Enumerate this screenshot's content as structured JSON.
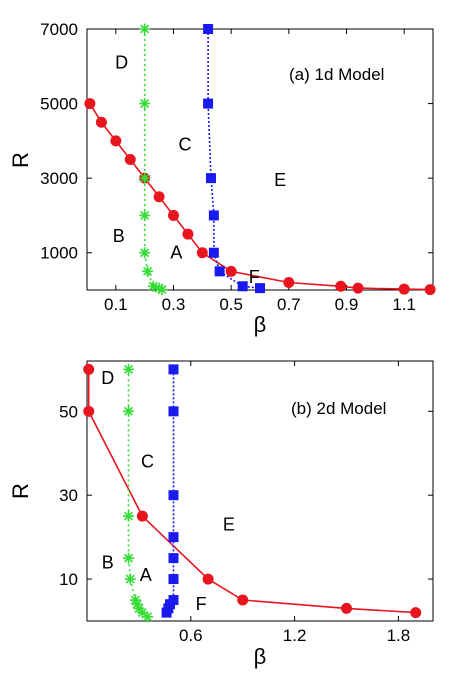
{
  "chart_data": [
    {
      "type": "line",
      "title": "(a) 1d Model",
      "xlabel": "β",
      "ylabel": "R",
      "xlim": [
        0,
        1.2
      ],
      "ylim": [
        0,
        7000
      ],
      "xticks": [
        0.1,
        0.3,
        0.5,
        0.7,
        0.9,
        1.1
      ],
      "xtick_labels": [
        "0.1",
        "0.3",
        "0.5",
        "0.7",
        "0.9",
        "1.1"
      ],
      "yticks": [
        1000,
        3000,
        5000,
        7000
      ],
      "ytick_labels": [
        "1000",
        "3000",
        "5000",
        "7000"
      ],
      "grid": false,
      "regions": [
        {
          "label": "D",
          "x": 0.12,
          "y": 6100
        },
        {
          "label": "C",
          "x": 0.34,
          "y": 3900
        },
        {
          "label": "E",
          "x": 0.67,
          "y": 2950
        },
        {
          "label": "B",
          "x": 0.11,
          "y": 1450
        },
        {
          "label": "A",
          "x": 0.31,
          "y": 1000
        },
        {
          "label": "F",
          "x": 0.58,
          "y": 350
        }
      ],
      "series": [
        {
          "color": "#e8141e",
          "marker": "circle",
          "dash": "",
          "x": [
            0.01,
            0.05,
            0.1,
            0.15,
            0.2,
            0.25,
            0.3,
            0.35,
            0.4,
            0.5,
            0.7,
            0.88,
            0.94,
            1.1,
            1.19
          ],
          "y": [
            5000,
            4500,
            4000,
            3500,
            3000,
            2500,
            2000,
            1500,
            1000,
            500,
            200,
            100,
            50,
            25,
            10
          ]
        },
        {
          "color": "#33dd33",
          "marker": "star",
          "dash": "2,3",
          "x": [
            0.2,
            0.2,
            0.2,
            0.2,
            0.2,
            0.21,
            0.23,
            0.25,
            0.26
          ],
          "y": [
            7000,
            5000,
            3000,
            2000,
            1000,
            500,
            100,
            50,
            10
          ]
        },
        {
          "color": "#1a1aee",
          "marker": "square",
          "dash": "2,2",
          "x": [
            0.42,
            0.42,
            0.43,
            0.44,
            0.44,
            0.46,
            0.54,
            0.6
          ],
          "y": [
            7000,
            5000,
            3000,
            2000,
            1000,
            500,
            100,
            50
          ]
        }
      ]
    },
    {
      "type": "line",
      "title": "(b) 2d Model",
      "xlabel": "β",
      "ylabel": "R",
      "xlim": [
        0,
        2
      ],
      "ylim": [
        0,
        62
      ],
      "xticks": [
        0.6,
        1.2,
        1.8
      ],
      "xtick_labels": [
        "0.6",
        "1.2",
        "1.8"
      ],
      "yticks": [
        10,
        30,
        50
      ],
      "ytick_labels": [
        "10",
        "30",
        "50"
      ],
      "grid": false,
      "regions": [
        {
          "label": "D",
          "x": 0.12,
          "y": 58
        },
        {
          "label": "C",
          "x": 0.35,
          "y": 38
        },
        {
          "label": "E",
          "x": 0.82,
          "y": 23
        },
        {
          "label": "B",
          "x": 0.12,
          "y": 14
        },
        {
          "label": "A",
          "x": 0.34,
          "y": 11
        },
        {
          "label": "F",
          "x": 0.66,
          "y": 4
        }
      ],
      "series": [
        {
          "color": "#e8141e",
          "marker": "circle",
          "dash": "",
          "x": [
            0.01,
            0.01,
            0.32,
            0.7,
            0.9,
            1.5,
            1.9
          ],
          "y": [
            60,
            50,
            25,
            10,
            5,
            3,
            2
          ]
        },
        {
          "color": "#33dd33",
          "marker": "star",
          "dash": "2,3",
          "x": [
            0.24,
            0.24,
            0.24,
            0.24,
            0.25,
            0.28,
            0.29,
            0.3,
            0.32,
            0.35
          ],
          "y": [
            60,
            50,
            25,
            15,
            10,
            5,
            4,
            3,
            2,
            1
          ]
        },
        {
          "color": "#1a1aee",
          "marker": "square",
          "dash": "2,2",
          "x": [
            0.5,
            0.5,
            0.5,
            0.5,
            0.5,
            0.5,
            0.5,
            0.48,
            0.47,
            0.46
          ],
          "y": [
            60,
            50,
            30,
            20,
            15,
            10,
            5,
            4,
            3,
            2
          ]
        }
      ]
    }
  ]
}
